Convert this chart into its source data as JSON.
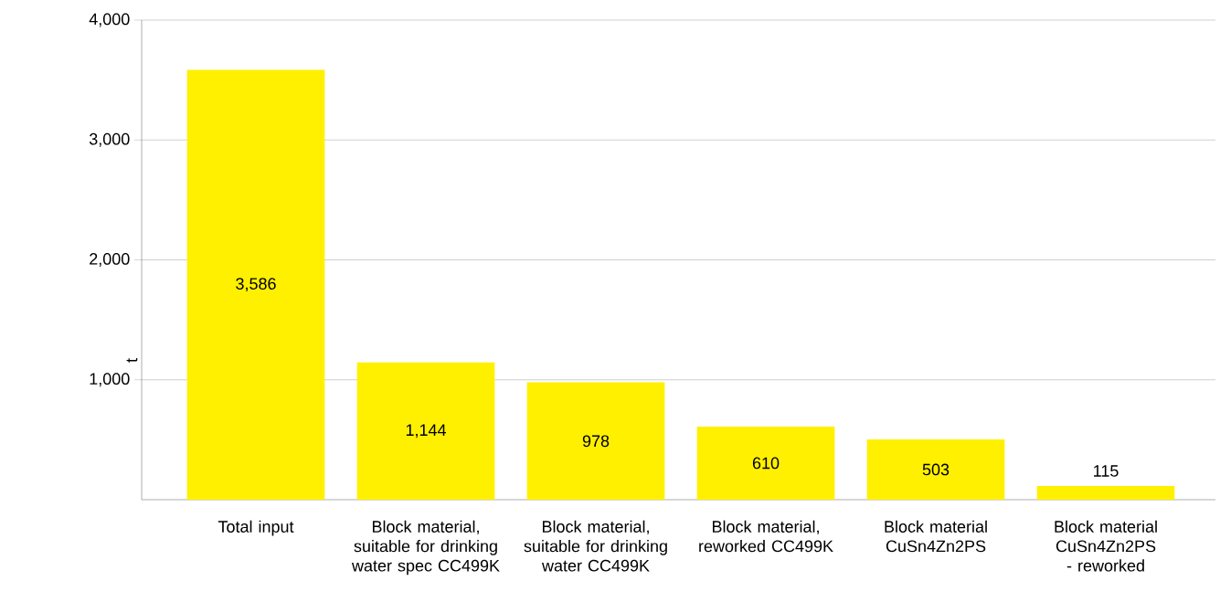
{
  "chart_data": {
    "type": "bar",
    "ylabel": "t",
    "categories": [
      "Total input",
      "Block material, suitable for drinking water spec CC499K",
      "Block material, suitable for drinking water CC499K",
      "Block material, reworked CC499K",
      "Block material CuSn4Zn2PS",
      "Block material CuSn4Zn2PS - reworked"
    ],
    "values": [
      3586,
      1144,
      978,
      610,
      503,
      115
    ],
    "value_labels": [
      "3,586",
      "1,144",
      "978",
      "610",
      "503",
      "115"
    ],
    "color": "#fff000",
    "ylim": [
      0,
      4000
    ],
    "yticks": [
      {
        "value": 1000,
        "label": "1,000"
      },
      {
        "value": 2000,
        "label": "2,000"
      },
      {
        "value": 3000,
        "label": "3,000"
      },
      {
        "value": 4000,
        "label": "4,000"
      }
    ],
    "grid": "y"
  }
}
